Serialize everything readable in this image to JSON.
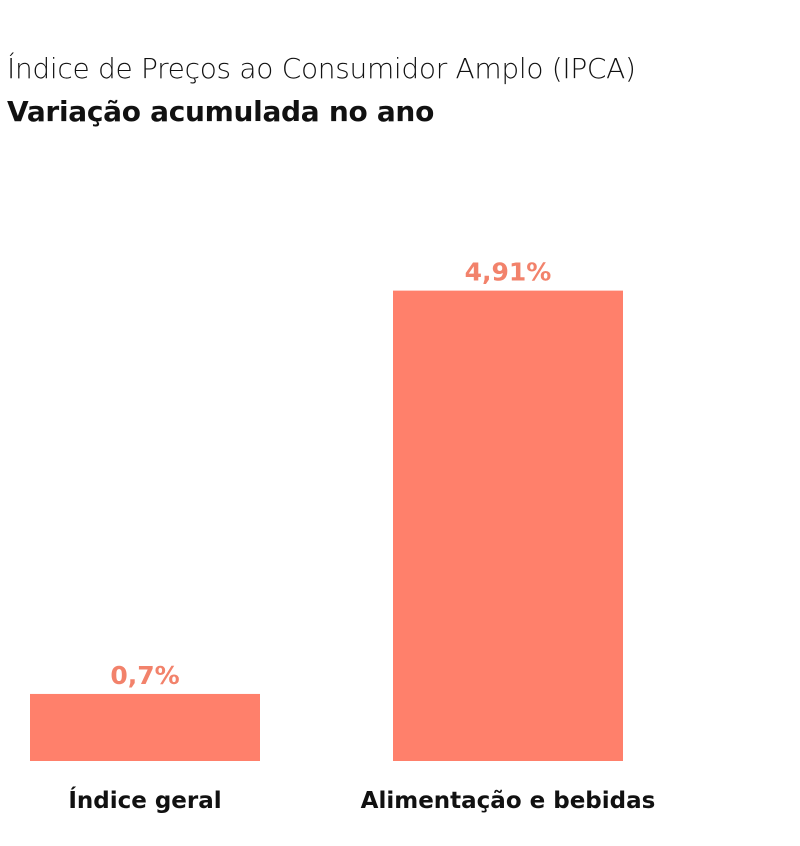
{
  "title": "Índice de Preços ao Consumidor Amplo (IPCA)",
  "subtitle": "Variação acumulada no ano",
  "colors": {
    "bar": "#FF806B",
    "data_label": "#F2826B",
    "category_label": "#111111"
  },
  "chart_data": {
    "type": "bar",
    "title": "Índice de Preços ao Consumidor Amplo (IPCA)",
    "subtitle": "Variação acumulada no ano",
    "categories": [
      "Índice geral",
      "Alimentação e bebidas"
    ],
    "values": [
      0.7,
      4.91
    ],
    "value_labels": [
      "0,7%",
      "4,91%"
    ],
    "xlabel": "",
    "ylabel": "",
    "ylim": [
      0,
      5
    ],
    "grid": false,
    "legend": "none"
  }
}
